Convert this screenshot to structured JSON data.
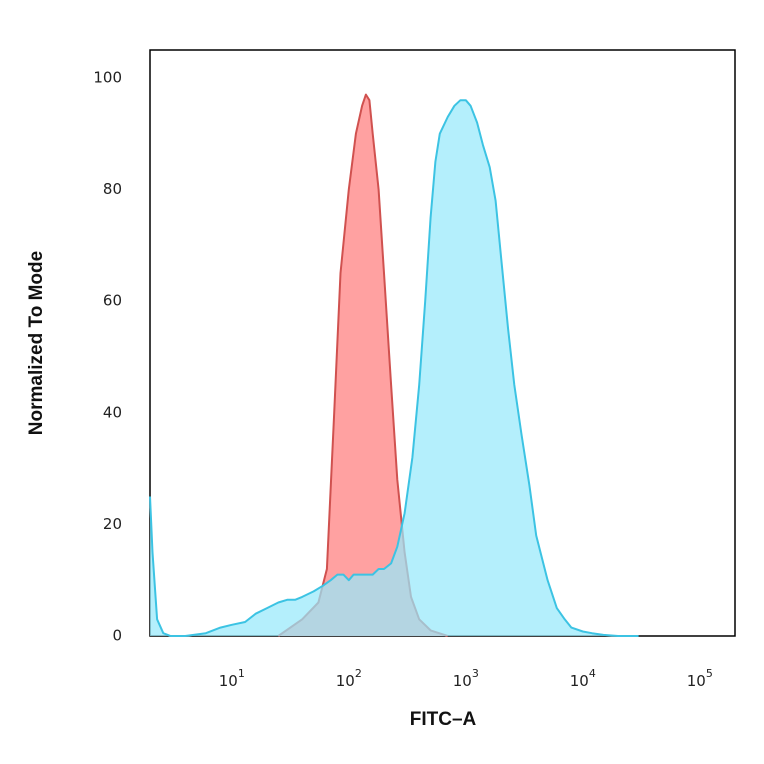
{
  "chart_data": {
    "type": "area",
    "xlabel": "FITC–A",
    "ylabel": "Normalized To Mode",
    "xscale": "log",
    "xlim": [
      2,
      200000
    ],
    "ylim": [
      0,
      105
    ],
    "x_ticks": [
      {
        "base": "10",
        "exp": "1"
      },
      {
        "base": "10",
        "exp": "2"
      },
      {
        "base": "10",
        "exp": "3"
      },
      {
        "base": "10",
        "exp": "4"
      },
      {
        "base": "10",
        "exp": "5"
      }
    ],
    "y_ticks": [
      "0",
      "20",
      "40",
      "60",
      "80",
      "100"
    ],
    "y_tick_values": [
      0,
      20,
      40,
      60,
      80,
      100
    ],
    "grid": false,
    "legend": "none",
    "series": [
      {
        "fill": "#ff9c9c",
        "stroke": "#d0514f",
        "x": [
          25,
          40,
          55,
          65,
          75,
          85,
          100,
          115,
          130,
          140,
          150,
          160,
          180,
          200,
          230,
          260,
          300,
          340,
          400,
          500,
          700
        ],
        "y": [
          0,
          3,
          6,
          12,
          40,
          65,
          80,
          90,
          95,
          97,
          96,
          90,
          80,
          65,
          45,
          28,
          15,
          7,
          3,
          1,
          0
        ]
      },
      {
        "fill": "#97e9fb",
        "stroke": "#3cc3e3",
        "x": [
          2,
          2.1,
          2.3,
          2.6,
          3,
          4,
          6,
          8,
          10,
          13,
          16,
          20,
          25,
          30,
          35,
          40,
          50,
          60,
          70,
          80,
          90,
          100,
          110,
          125,
          140,
          160,
          180,
          200,
          230,
          260,
          300,
          350,
          400,
          450,
          500,
          550,
          600,
          700,
          800,
          900,
          1000,
          1100,
          1250,
          1400,
          1600,
          1800,
          2000,
          2300,
          2600,
          3000,
          3500,
          4000,
          5000,
          6000,
          7000,
          8000,
          10000,
          12000,
          15000,
          20000,
          30000
        ],
        "y": [
          25,
          15,
          3,
          0.5,
          0,
          0,
          0.5,
          1.5,
          2,
          2.5,
          4,
          5,
          6,
          6.5,
          6.5,
          7,
          8,
          9,
          10,
          11,
          11,
          10,
          11,
          11,
          11,
          11,
          12,
          12,
          13,
          16,
          22,
          32,
          45,
          60,
          75,
          85,
          90,
          93,
          95,
          96,
          96,
          95,
          92,
          88,
          84,
          78,
          68,
          55,
          45,
          36,
          27,
          18,
          10,
          5,
          3,
          1.5,
          0.8,
          0.5,
          0.2,
          0,
          0
        ]
      }
    ]
  }
}
